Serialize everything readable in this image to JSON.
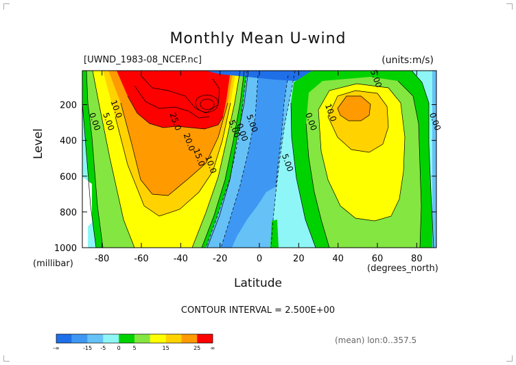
{
  "chart_data": {
    "type": "contour",
    "title": "Monthly Mean U-wind",
    "subtitle": "[UWND_1983-08_NCEP.nc]",
    "units": "(units:m/s)",
    "ylabel": "Level",
    "ylabel_unit": "(millibar)",
    "xlabel": "Latitude",
    "xlabel_unit": "(degrees_north)",
    "xlim": [
      -90,
      90
    ],
    "ylim": [
      1000,
      10
    ],
    "x_ticks": [
      -80,
      -60,
      -40,
      -20,
      0,
      20,
      40,
      60,
      80
    ],
    "y_ticks": [
      200,
      400,
      600,
      800,
      1000
    ],
    "contour_interval_text": "CONTOUR INTERVAL = 2.500E+00",
    "contour_labels": [
      {
        "text": "10.0",
        "lat": -74,
        "lev": 230
      },
      {
        "text": "5.00",
        "lat": -78,
        "lev": 300
      },
      {
        "text": "0.00",
        "lat": -85,
        "lev": 300
      },
      {
        "text": "25.0",
        "lat": -44,
        "lev": 300
      },
      {
        "text": "20.0",
        "lat": -37,
        "lev": 415
      },
      {
        "text": "15.0",
        "lat": -32,
        "lev": 500
      },
      {
        "text": "10.0",
        "lat": -26,
        "lev": 540
      },
      {
        "text": "5.00",
        "lat": -14,
        "lev": 340
      },
      {
        "text": "0.00",
        "lat": -10,
        "lev": 360
      },
      {
        "text": "5.00",
        "lat": -5,
        "lev": 310
      },
      {
        "text": "5.00",
        "lat": 13,
        "lev": 530
      },
      {
        "text": "0.00",
        "lat": 25,
        "lev": 300
      },
      {
        "text": "5.00",
        "lat": 58,
        "lev": 60
      },
      {
        "text": "10.0",
        "lat": 35,
        "lev": 250
      },
      {
        "text": "0.00",
        "lat": 88,
        "lev": 300
      }
    ],
    "colorbar": {
      "ticks": [
        "-∞",
        "-15",
        "-5",
        "0",
        "5",
        "15",
        "25",
        "∞"
      ],
      "colors": [
        "#1f6fe8",
        "#3e98f3",
        "#66c1f7",
        "#8ef6f6",
        "#00d200",
        "#84e640",
        "#ffff00",
        "#ffd200",
        "#ff9a00",
        "#ff0000"
      ]
    },
    "footer_text": "(mean) lon:0..357.5"
  },
  "colors": {
    "fill_default": "#8ef6f6",
    "band1": "#00d200",
    "band2": "#84e640",
    "band3": "#ffff00",
    "band4": "#ffd200",
    "band5": "#ff9a00",
    "band6": "#ff0000",
    "neg1": "#66c1f7",
    "neg2": "#3e98f3",
    "neg3": "#1f6fe8"
  }
}
